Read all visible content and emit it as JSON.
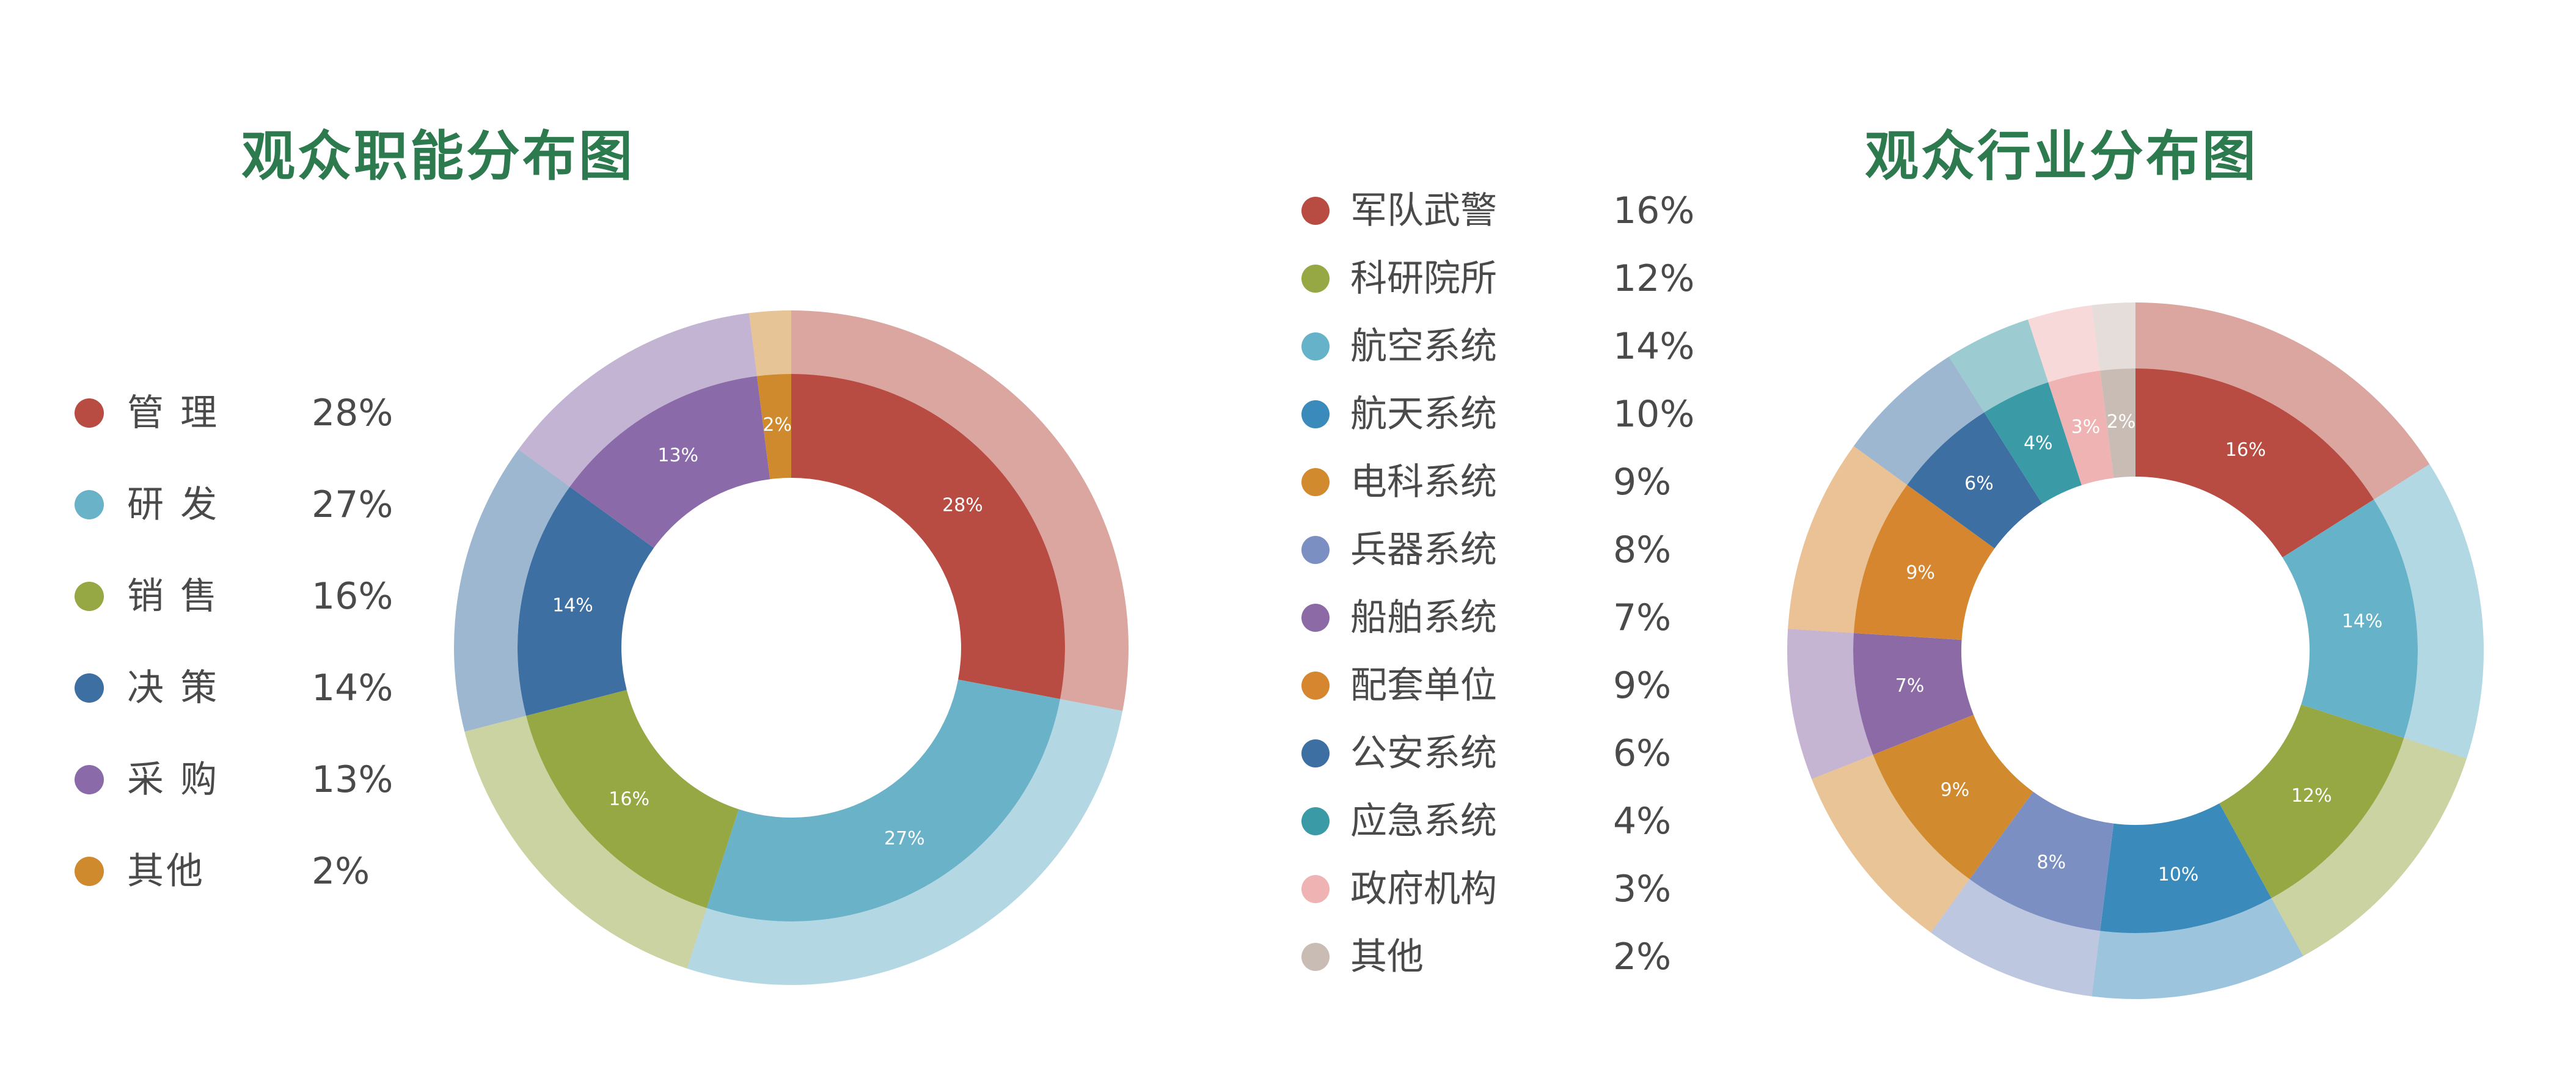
{
  "chart_data": [
    {
      "type": "pie",
      "variant": "donut",
      "title": "观众职能分布图",
      "legend_position": "left",
      "categories": [
        "管 理",
        "研 发",
        "销 售",
        "决 策",
        "采 购",
        "其他"
      ],
      "values": [
        28,
        27,
        16,
        14,
        13,
        2
      ],
      "value_labels": [
        "28%",
        "27%",
        "16%",
        "14%",
        "13%",
        "2%"
      ],
      "slice_order": [
        0,
        1,
        2,
        3,
        4,
        5
      ],
      "colors": [
        "#b84b42",
        "#6ab2c8",
        "#95a844",
        "#3e6fa3",
        "#8a6aa8",
        "#d08a2e"
      ]
    },
    {
      "type": "pie",
      "variant": "donut",
      "title": "观众行业分布图",
      "legend_position": "left",
      "categories": [
        "军队武警",
        "科研院所",
        "航空系统",
        "航天系统",
        "电科系统",
        "兵器系统",
        "船舶系统",
        "配套单位",
        "公安系统",
        "应急系统",
        "政府机构",
        "其他"
      ],
      "values": [
        16,
        12,
        14,
        10,
        9,
        8,
        7,
        9,
        6,
        4,
        3,
        2
      ],
      "value_labels": [
        "16%",
        "12%",
        "14%",
        "10%",
        "9%",
        "8%",
        "7%",
        "9%",
        "6%",
        "4%",
        "3%",
        "2%"
      ],
      "slice_order": [
        0,
        2,
        1,
        3,
        5,
        4,
        6,
        7,
        8,
        9,
        10,
        11
      ],
      "colors": [
        "#b84b42",
        "#96a843",
        "#66b2c9",
        "#3a8abb",
        "#d28a2e",
        "#7b8fc2",
        "#8b6aa6",
        "#d6862e",
        "#3e6fa3",
        "#3a9aa6",
        "#efb3b3",
        "#c9bcb4"
      ]
    }
  ]
}
